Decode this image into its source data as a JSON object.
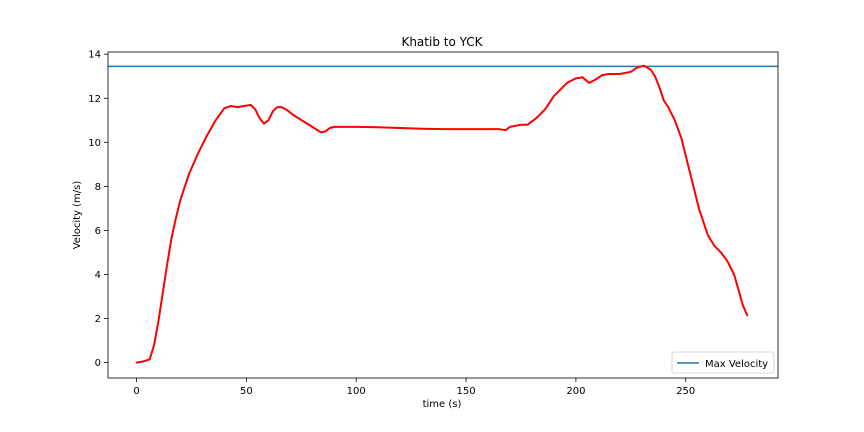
{
  "chart_data": {
    "type": "line",
    "title": "Khatib to YCK",
    "xlabel": "time (s)",
    "ylabel": "Velocity (m/s)",
    "xlim": [
      -13,
      292
    ],
    "ylim": [
      -0.7,
      14.1
    ],
    "xticks": [
      0,
      50,
      100,
      150,
      200,
      250
    ],
    "yticks": [
      0,
      2,
      4,
      6,
      8,
      10,
      12,
      14
    ],
    "grid": false,
    "legend_position": "lower right",
    "colors": {
      "velocity": "#ff0000",
      "max_velocity": "#1f77b4",
      "ylabel": "#1f77b4"
    },
    "series": [
      {
        "role": "velocity",
        "x": [
          0,
          3,
          6,
          8,
          10,
          12,
          14,
          16,
          18,
          20,
          24,
          28,
          32,
          36,
          40,
          43,
          46,
          49,
          52,
          54,
          56,
          58,
          60,
          62,
          64,
          66,
          68,
          70,
          72,
          76,
          80,
          84,
          86,
          88,
          90,
          95,
          100,
          110,
          120,
          130,
          140,
          150,
          160,
          165,
          168,
          170,
          175,
          178,
          182,
          186,
          190,
          193,
          196,
          200,
          203,
          206,
          209,
          212,
          215,
          220,
          225,
          228,
          231,
          234,
          236,
          238,
          240,
          242,
          245,
          248,
          252,
          256,
          260,
          263,
          266,
          269,
          272,
          274,
          276,
          278
        ],
        "values": [
          0.0,
          0.05,
          0.15,
          0.8,
          1.9,
          3.2,
          4.5,
          5.7,
          6.6,
          7.4,
          8.6,
          9.5,
          10.3,
          11.0,
          11.55,
          11.65,
          11.6,
          11.65,
          11.7,
          11.5,
          11.1,
          10.85,
          11.0,
          11.4,
          11.6,
          11.6,
          11.5,
          11.35,
          11.2,
          10.95,
          10.7,
          10.45,
          10.5,
          10.65,
          10.7,
          10.7,
          10.7,
          10.68,
          10.65,
          10.62,
          10.6,
          10.6,
          10.6,
          10.6,
          10.55,
          10.7,
          10.8,
          10.8,
          11.1,
          11.5,
          12.1,
          12.4,
          12.7,
          12.9,
          12.95,
          12.7,
          12.85,
          13.05,
          13.1,
          13.1,
          13.2,
          13.4,
          13.48,
          13.3,
          13.0,
          12.5,
          11.9,
          11.6,
          11.0,
          10.2,
          8.6,
          7.0,
          5.8,
          5.3,
          5.0,
          4.6,
          4.0,
          3.3,
          2.6,
          2.15
        ]
      }
    ],
    "hlines": [
      {
        "name": "Max Velocity",
        "value": 13.45
      }
    ]
  }
}
